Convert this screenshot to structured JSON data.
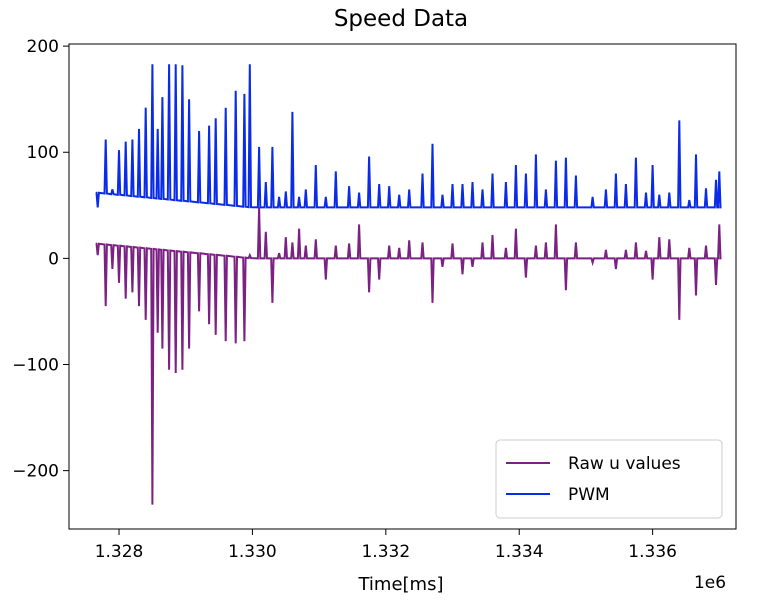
{
  "chart_data": {
    "type": "line",
    "title": "Speed Data",
    "xlabel": "Time[ms]",
    "ylabel": "",
    "x_offset_label": "1e6",
    "xlim": [
      1.32725,
      1.33725
    ],
    "ylim": [
      -255,
      202
    ],
    "x_ticks": [
      1.328,
      1.33,
      1.332,
      1.334,
      1.336
    ],
    "x_tick_labels": [
      "1.328",
      "1.330",
      "1.332",
      "1.334",
      "1.336"
    ],
    "y_ticks": [
      -200,
      -100,
      0,
      100,
      200
    ],
    "y_tick_labels": [
      "−200",
      "−100",
      "0",
      "100",
      "200"
    ],
    "grid": false,
    "legend_position": "lower-right",
    "series": [
      {
        "name": "Raw u values",
        "color": "#7b2183",
        "x_start": 1.32765,
        "x_end": 1.337,
        "x_switch": 1.33,
        "baseline_start": 14,
        "baseline_switch": 0,
        "baseline_end": 0,
        "spikes": [
          [
            1.32768,
            3
          ],
          [
            1.3278,
            -45
          ],
          [
            1.3279,
            -10
          ],
          [
            1.328,
            -23
          ],
          [
            1.3281,
            -38
          ],
          [
            1.3282,
            -32
          ],
          [
            1.3283,
            -45
          ],
          [
            1.3284,
            -58
          ],
          [
            1.3285,
            -232
          ],
          [
            1.32858,
            -70
          ],
          [
            1.32865,
            -85
          ],
          [
            1.32875,
            -105
          ],
          [
            1.32885,
            -108
          ],
          [
            1.32895,
            -105
          ],
          [
            1.32905,
            -85
          ],
          [
            1.3292,
            -50
          ],
          [
            1.32935,
            -62
          ],
          [
            1.32945,
            -72
          ],
          [
            1.3296,
            -78
          ],
          [
            1.32975,
            -80
          ],
          [
            1.32988,
            -78
          ],
          [
            1.32996,
            3
          ],
          [
            1.3301,
            48
          ],
          [
            1.3302,
            25
          ],
          [
            1.3303,
            -42
          ],
          [
            1.3304,
            5
          ],
          [
            1.3305,
            20
          ],
          [
            1.3306,
            15
          ],
          [
            1.3307,
            28
          ],
          [
            1.3308,
            12
          ],
          [
            1.33095,
            18
          ],
          [
            1.3311,
            -20
          ],
          [
            1.33125,
            12
          ],
          [
            1.33145,
            14
          ],
          [
            1.3316,
            32
          ],
          [
            1.33175,
            -32
          ],
          [
            1.3319,
            -20
          ],
          [
            1.33205,
            12
          ],
          [
            1.3322,
            10
          ],
          [
            1.33235,
            17
          ],
          [
            1.33255,
            15
          ],
          [
            1.3327,
            -42
          ],
          [
            1.33285,
            -8
          ],
          [
            1.333,
            14
          ],
          [
            1.33315,
            -15
          ],
          [
            1.3333,
            -8
          ],
          [
            1.33345,
            15
          ],
          [
            1.3336,
            22
          ],
          [
            1.3338,
            10
          ],
          [
            1.33395,
            28
          ],
          [
            1.3341,
            -18
          ],
          [
            1.33425,
            12
          ],
          [
            1.3344,
            15
          ],
          [
            1.33455,
            32
          ],
          [
            1.3347,
            -30
          ],
          [
            1.33485,
            15
          ],
          [
            1.3351,
            -4
          ],
          [
            1.3353,
            8
          ],
          [
            1.33545,
            -10
          ],
          [
            1.3356,
            8
          ],
          [
            1.33575,
            15
          ],
          [
            1.3359,
            7
          ],
          [
            1.336,
            -20
          ],
          [
            1.3361,
            20
          ],
          [
            1.33625,
            18
          ],
          [
            1.3364,
            -58
          ],
          [
            1.33655,
            10
          ],
          [
            1.33665,
            -35
          ],
          [
            1.3368,
            12
          ],
          [
            1.33695,
            -25
          ],
          [
            1.337,
            32
          ]
        ]
      },
      {
        "name": "PWM",
        "color": "#0a2ce8",
        "x_start": 1.32765,
        "x_end": 1.337,
        "x_switch": 1.33,
        "baseline_start": 62,
        "baseline_switch": 48,
        "baseline_end": 48,
        "spikes": [
          [
            1.32768,
            48
          ],
          [
            1.3278,
            112
          ],
          [
            1.3279,
            65
          ],
          [
            1.328,
            102
          ],
          [
            1.3281,
            110
          ],
          [
            1.3282,
            112
          ],
          [
            1.3283,
            122
          ],
          [
            1.3284,
            142
          ],
          [
            1.3285,
            183
          ],
          [
            1.32858,
            122
          ],
          [
            1.32865,
            152
          ],
          [
            1.32875,
            183
          ],
          [
            1.32885,
            183
          ],
          [
            1.32895,
            182
          ],
          [
            1.32905,
            150
          ],
          [
            1.3292,
            120
          ],
          [
            1.32935,
            125
          ],
          [
            1.32945,
            132
          ],
          [
            1.3296,
            142
          ],
          [
            1.32975,
            158
          ],
          [
            1.32988,
            155
          ],
          [
            1.32996,
            183
          ],
          [
            1.3301,
            105
          ],
          [
            1.3302,
            72
          ],
          [
            1.3303,
            105
          ],
          [
            1.3304,
            58
          ],
          [
            1.3305,
            63
          ],
          [
            1.3306,
            138
          ],
          [
            1.3307,
            58
          ],
          [
            1.3308,
            65
          ],
          [
            1.33095,
            88
          ],
          [
            1.3311,
            58
          ],
          [
            1.33125,
            82
          ],
          [
            1.33145,
            68
          ],
          [
            1.3316,
            62
          ],
          [
            1.33175,
            96
          ],
          [
            1.3319,
            70
          ],
          [
            1.33205,
            68
          ],
          [
            1.3322,
            60
          ],
          [
            1.33235,
            65
          ],
          [
            1.33255,
            80
          ],
          [
            1.3327,
            108
          ],
          [
            1.33285,
            60
          ],
          [
            1.333,
            70
          ],
          [
            1.33315,
            70
          ],
          [
            1.3333,
            72
          ],
          [
            1.33345,
            65
          ],
          [
            1.3336,
            80
          ],
          [
            1.3338,
            72
          ],
          [
            1.33395,
            88
          ],
          [
            1.3341,
            80
          ],
          [
            1.33425,
            98
          ],
          [
            1.3344,
            65
          ],
          [
            1.33455,
            92
          ],
          [
            1.3347,
            95
          ],
          [
            1.33485,
            78
          ],
          [
            1.3351,
            58
          ],
          [
            1.3353,
            65
          ],
          [
            1.33545,
            80
          ],
          [
            1.3356,
            70
          ],
          [
            1.33575,
            95
          ],
          [
            1.3359,
            62
          ],
          [
            1.336,
            88
          ],
          [
            1.3361,
            60
          ],
          [
            1.33625,
            62
          ],
          [
            1.3364,
            130
          ],
          [
            1.33655,
            55
          ],
          [
            1.33665,
            98
          ],
          [
            1.3368,
            66
          ],
          [
            1.33695,
            74
          ],
          [
            1.337,
            82
          ]
        ]
      }
    ]
  }
}
